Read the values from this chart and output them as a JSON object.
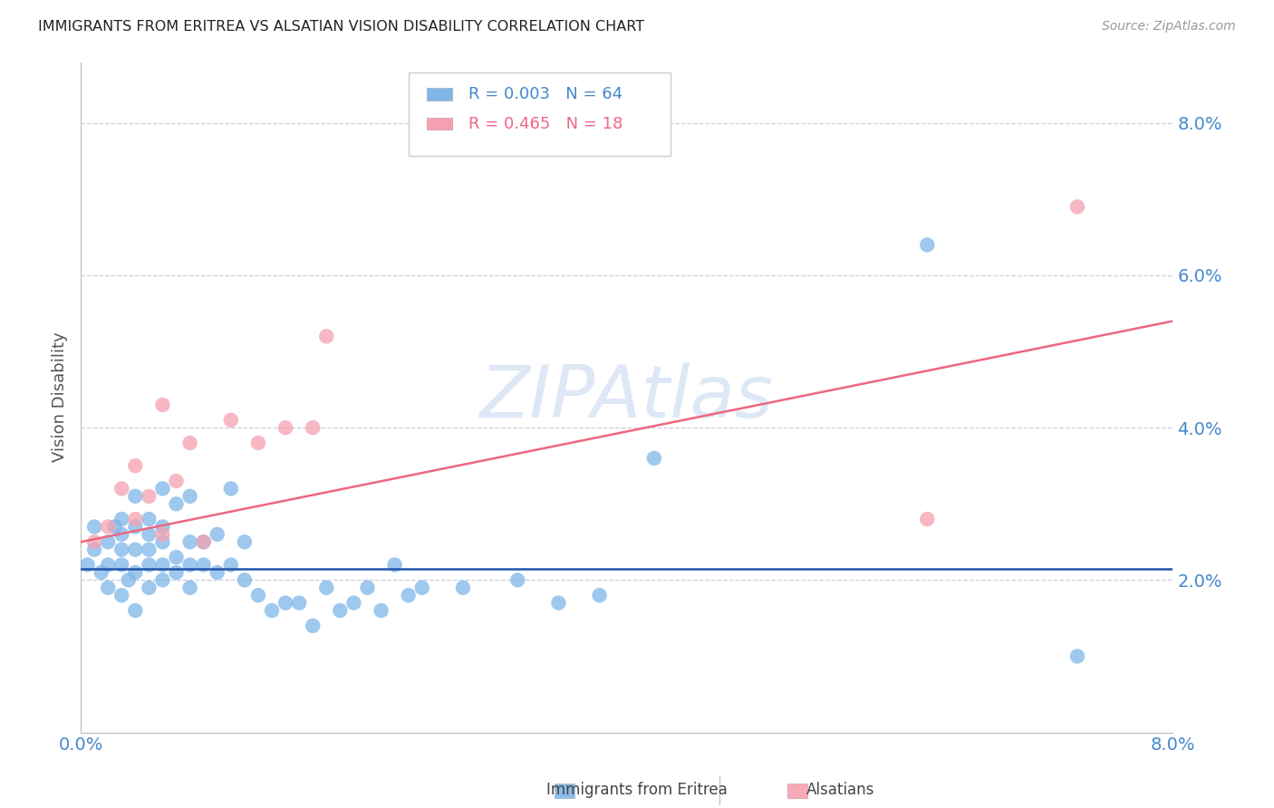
{
  "title": "IMMIGRANTS FROM ERITREA VS ALSATIAN VISION DISABILITY CORRELATION CHART",
  "source": "Source: ZipAtlas.com",
  "ylabel": "Vision Disability",
  "xlim": [
    0.0,
    0.08
  ],
  "ylim": [
    0.0,
    0.088
  ],
  "yticks": [
    0.02,
    0.04,
    0.06,
    0.08
  ],
  "xticks": [
    0.0,
    0.08
  ],
  "legend_r1": "R = 0.003",
  "legend_n1": "N = 64",
  "legend_r2": "R = 0.465",
  "legend_n2": "N = 18",
  "legend_label1": "Immigrants from Eritrea",
  "legend_label2": "Alsatians",
  "blue_color": "#7EB6E8",
  "pink_color": "#F5A0B0",
  "blue_line_color": "#2255AA",
  "pink_line_color": "#EE6680",
  "axis_color": "#4488CC",
  "grid_color": "#CCCCDD",
  "watermark": "ZIPAtlas",
  "blue_scatter_x": [
    0.0005,
    0.001,
    0.001,
    0.0015,
    0.002,
    0.002,
    0.002,
    0.0025,
    0.003,
    0.003,
    0.003,
    0.003,
    0.003,
    0.0035,
    0.004,
    0.004,
    0.004,
    0.004,
    0.004,
    0.005,
    0.005,
    0.005,
    0.005,
    0.005,
    0.006,
    0.006,
    0.006,
    0.006,
    0.006,
    0.007,
    0.007,
    0.007,
    0.008,
    0.008,
    0.008,
    0.008,
    0.009,
    0.009,
    0.01,
    0.01,
    0.011,
    0.011,
    0.012,
    0.012,
    0.013,
    0.014,
    0.015,
    0.016,
    0.017,
    0.018,
    0.019,
    0.02,
    0.021,
    0.022,
    0.023,
    0.024,
    0.025,
    0.028,
    0.032,
    0.035,
    0.038,
    0.042,
    0.062,
    0.073
  ],
  "blue_scatter_y": [
    0.022,
    0.024,
    0.027,
    0.021,
    0.019,
    0.022,
    0.025,
    0.027,
    0.018,
    0.022,
    0.024,
    0.026,
    0.028,
    0.02,
    0.016,
    0.021,
    0.024,
    0.027,
    0.031,
    0.019,
    0.022,
    0.024,
    0.026,
    0.028,
    0.02,
    0.022,
    0.025,
    0.027,
    0.032,
    0.021,
    0.023,
    0.03,
    0.019,
    0.022,
    0.025,
    0.031,
    0.022,
    0.025,
    0.021,
    0.026,
    0.022,
    0.032,
    0.02,
    0.025,
    0.018,
    0.016,
    0.017,
    0.017,
    0.014,
    0.019,
    0.016,
    0.017,
    0.019,
    0.016,
    0.022,
    0.018,
    0.019,
    0.019,
    0.02,
    0.017,
    0.018,
    0.036,
    0.064,
    0.01
  ],
  "pink_scatter_x": [
    0.001,
    0.002,
    0.003,
    0.004,
    0.004,
    0.005,
    0.006,
    0.006,
    0.007,
    0.008,
    0.009,
    0.011,
    0.013,
    0.015,
    0.017,
    0.018,
    0.062,
    0.073
  ],
  "pink_scatter_y": [
    0.025,
    0.027,
    0.032,
    0.028,
    0.035,
    0.031,
    0.043,
    0.026,
    0.033,
    0.038,
    0.025,
    0.041,
    0.038,
    0.04,
    0.04,
    0.052,
    0.028,
    0.069
  ],
  "blue_line_x": [
    0.0,
    0.08
  ],
  "blue_line_y": [
    0.0215,
    0.0215
  ],
  "pink_line_x": [
    0.0,
    0.08
  ],
  "pink_line_y": [
    0.025,
    0.054
  ]
}
